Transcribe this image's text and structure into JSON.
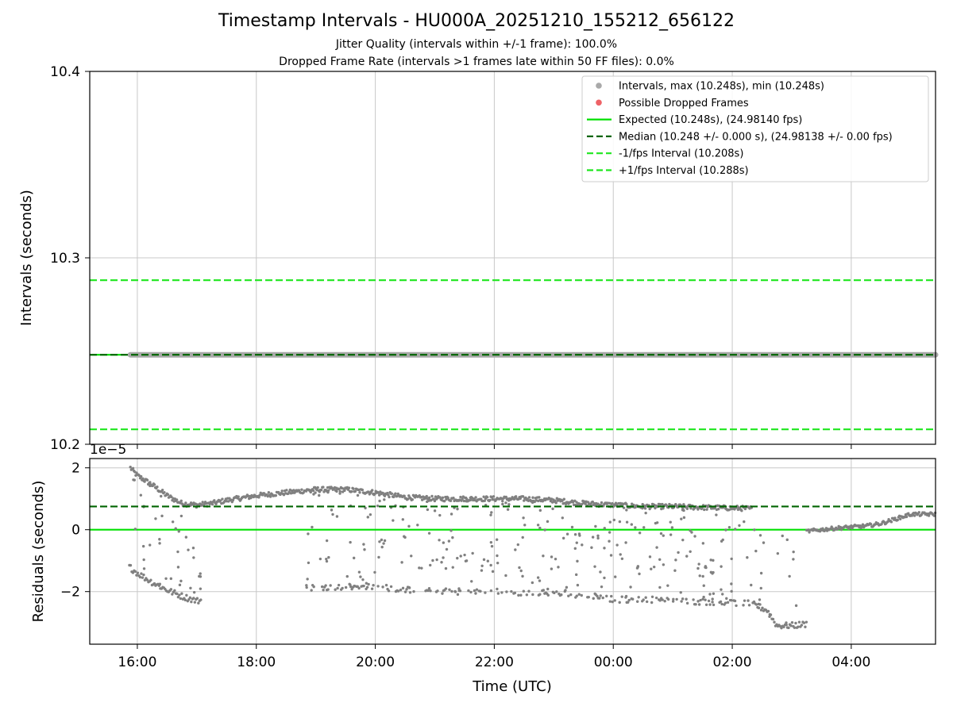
{
  "title": "Timestamp Intervals - HU000A_20251210_155212_656122",
  "subtitle_jitter": "Jitter Quality (intervals within +/-1 frame): 100.0%",
  "subtitle_dropped": "Dropped Frame Rate (intervals >1 frames late within 50 FF files): 0.0%",
  "colors": {
    "points": "#808080",
    "dropped": "#e8464a",
    "expected": "#00e000",
    "median": "#006400",
    "fps_band": "#1ee61e",
    "grid": "#c8c8c8"
  },
  "chart_data": [
    {
      "type": "scatter",
      "panel": "top",
      "ylabel": "Intervals (seconds)",
      "ylim": [
        10.2,
        10.4
      ],
      "yticks": [
        "10.2",
        "10.3",
        "10.4"
      ],
      "x_range": [
        "15:12",
        "05:25"
      ],
      "grid": true,
      "legend_position": "top-right",
      "legend": [
        {
          "label": "Intervals, max (10.248s), min (10.248s)",
          "kind": "dot",
          "color": "#a9a9a9"
        },
        {
          "label": "Possible Dropped Frames",
          "kind": "dot",
          "color": "#ee6266"
        },
        {
          "label": "Expected (10.248s), (24.98140 fps)",
          "kind": "solid",
          "color": "#00e000"
        },
        {
          "label": "Median (10.248 +/- 0.000 s), (24.98138 +/- 0.00 fps)",
          "kind": "dashed",
          "color": "#006400"
        },
        {
          "label": "-1/fps Interval (10.208s)",
          "kind": "dashed",
          "color": "#1ee61e"
        },
        {
          "label": "+1/fps Interval (10.288s)",
          "kind": "dashed",
          "color": "#1ee61e"
        }
      ],
      "series": [
        {
          "name": "Intervals",
          "x_start": "15:53",
          "x_end": "05:25",
          "y": 10.248
        },
        {
          "name": "Expected",
          "y": 10.248
        },
        {
          "name": "Median",
          "y": 10.248
        },
        {
          "name": "-1/fps Interval",
          "y": 10.208
        },
        {
          "name": "+1/fps Interval",
          "y": 10.288
        }
      ]
    },
    {
      "type": "scatter",
      "panel": "bottom",
      "ylabel": "Residuals (seconds)",
      "xlabel": "Time (UTC)",
      "y_scale_label": "1e−5",
      "ylim": [
        -3.7,
        2.3
      ],
      "yticks": [
        "−2",
        "0",
        "2"
      ],
      "xticks": [
        "16:00",
        "18:00",
        "20:00",
        "22:00",
        "00:00",
        "02:00",
        "04:00"
      ],
      "grid": true,
      "series": [
        {
          "name": "Expected",
          "y": 0
        },
        {
          "name": "Median",
          "y": 0.75
        },
        {
          "name": "Residuals main band",
          "x": [
            "15:53",
            "16:00",
            "16:15",
            "16:30",
            "16:45",
            "17:00",
            "17:15",
            "17:30",
            "18:00",
            "18:30",
            "19:00",
            "19:30",
            "20:00",
            "20:30",
            "21:00",
            "21:30",
            "22:00",
            "22:30",
            "23:00",
            "23:30",
            "00:00",
            "00:30",
            "01:00",
            "01:30",
            "02:00",
            "02:20"
          ],
          "y": [
            2.0,
            1.75,
            1.45,
            1.1,
            0.85,
            0.8,
            0.85,
            0.95,
            1.1,
            1.2,
            1.3,
            1.3,
            1.2,
            1.05,
            1.0,
            1.0,
            1.0,
            1.0,
            0.95,
            0.85,
            0.8,
            0.75,
            0.75,
            0.72,
            0.7,
            0.68
          ]
        },
        {
          "name": "Residuals lower band",
          "x": [
            "15:52",
            "16:00",
            "16:15",
            "16:30",
            "16:45",
            "17:00",
            "19:00",
            "20:00",
            "21:00",
            "22:00",
            "23:00",
            "00:00",
            "01:00",
            "02:00",
            "02:20",
            "02:35",
            "02:45",
            "03:00",
            "03:15"
          ],
          "y": [
            -1.2,
            -1.4,
            -1.7,
            -1.95,
            -2.15,
            -2.3,
            -1.85,
            -1.85,
            -2.0,
            -2.0,
            -2.05,
            -2.25,
            -2.3,
            -2.35,
            -2.4,
            -2.6,
            -3.1,
            -3.1,
            -3.05
          ]
        },
        {
          "name": "Residuals late segment",
          "x": [
            "03:15",
            "03:45",
            "04:15",
            "04:30",
            "04:45",
            "05:00",
            "05:25"
          ],
          "y": [
            -0.05,
            0.05,
            0.12,
            0.2,
            0.35,
            0.5,
            0.5
          ]
        }
      ]
    }
  ]
}
